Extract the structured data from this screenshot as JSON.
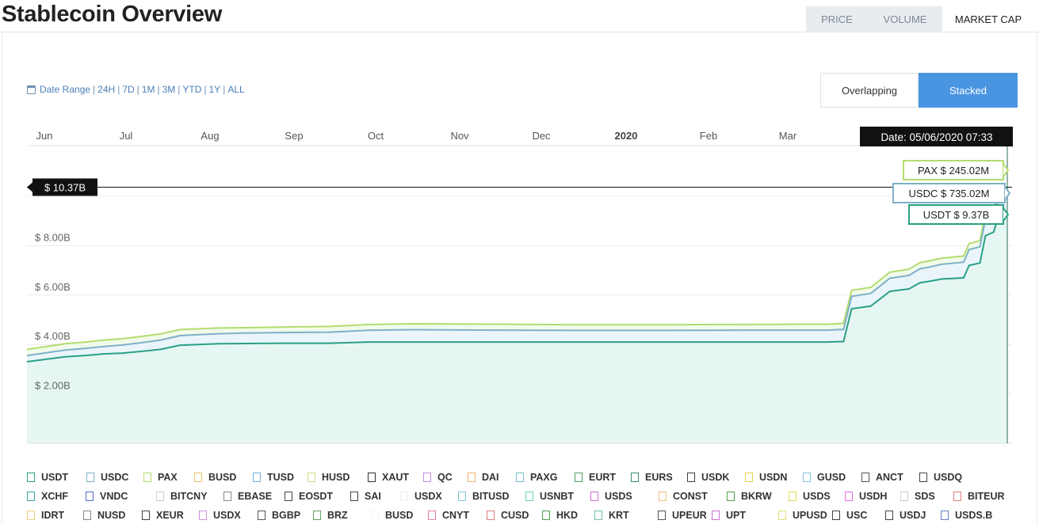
{
  "header": {
    "title": "Stablecoin Overview"
  },
  "tabs": [
    {
      "label": "PRICE",
      "active": false
    },
    {
      "label": "VOLUME",
      "active": false
    },
    {
      "label": "MARKET CAP",
      "active": true
    }
  ],
  "date_range": {
    "label": "Date Range",
    "options": [
      "24H",
      "7D",
      "1M",
      "3M",
      "YTD",
      "1Y",
      "ALL"
    ]
  },
  "view_modes": [
    {
      "label": "Overlapping",
      "active": false
    },
    {
      "label": "Stacked",
      "active": true
    }
  ],
  "colors": {
    "usdt": "#2aa085",
    "usdc": "#7fb0c9",
    "pax": "#b3dc6e",
    "fill": "#e6f7f3",
    "link": "#4a7fb5",
    "accent": "#4a95e2"
  },
  "chart_data": {
    "type": "area",
    "stacked": true,
    "x_ticks": [
      "Jun",
      "Jul",
      "Aug",
      "Sep",
      "Oct",
      "Nov",
      "Dec",
      "2020",
      "Feb",
      "Mar"
    ],
    "y_ticks": [
      "$ 2.00B",
      "$ 4.00B",
      "$ 6.00B",
      "$ 8.00B"
    ],
    "ylim": [
      0,
      10.5
    ],
    "cursor": {
      "date_label": "Date: 05/06/2020 07:33",
      "value_label": "$ 10.37B",
      "value": 10.37
    },
    "series": [
      {
        "name": "USDT",
        "color": "#2aa085",
        "tooltip": "USDT $ 9.37B",
        "points": [
          [
            "2019-05-13",
            3.3
          ],
          [
            "2019-05-20",
            3.4
          ],
          [
            "2019-05-27",
            3.5
          ],
          [
            "2019-06-03",
            3.55
          ],
          [
            "2019-06-10",
            3.62
          ],
          [
            "2019-06-17",
            3.65
          ],
          [
            "2019-06-24",
            3.72
          ],
          [
            "2019-07-01",
            3.8
          ],
          [
            "2019-07-08",
            3.97
          ],
          [
            "2019-07-15",
            4.0
          ],
          [
            "2019-07-22",
            4.03
          ],
          [
            "2019-08-01",
            4.04
          ],
          [
            "2019-08-15",
            4.05
          ],
          [
            "2019-09-01",
            4.05
          ],
          [
            "2019-09-15",
            4.1
          ],
          [
            "2019-10-01",
            4.1
          ],
          [
            "2019-11-01",
            4.1
          ],
          [
            "2019-12-01",
            4.1
          ],
          [
            "2020-01-01",
            4.1
          ],
          [
            "2020-02-01",
            4.1
          ],
          [
            "2020-03-01",
            4.1
          ],
          [
            "2020-03-07",
            4.12
          ],
          [
            "2020-03-10",
            5.45
          ],
          [
            "2020-03-17",
            5.55
          ],
          [
            "2020-03-24",
            6.15
          ],
          [
            "2020-03-31",
            6.25
          ],
          [
            "2020-04-04",
            6.5
          ],
          [
            "2020-04-07",
            6.55
          ],
          [
            "2020-04-12",
            6.65
          ],
          [
            "2020-04-20",
            6.7
          ],
          [
            "2020-04-22",
            7.2
          ],
          [
            "2020-04-26",
            7.3
          ],
          [
            "2020-04-28",
            8.4
          ],
          [
            "2020-05-01",
            8.55
          ],
          [
            "2020-05-03",
            9.3
          ],
          [
            "2020-05-06",
            9.37
          ]
        ]
      },
      {
        "name": "USDC",
        "color": "#7fb0c9",
        "tooltip": "USDC $ 735.02M",
        "points": [
          [
            "2019-05-13",
            0.25
          ],
          [
            "2019-06-10",
            0.3
          ],
          [
            "2019-07-01",
            0.38
          ],
          [
            "2019-08-01",
            0.42
          ],
          [
            "2019-09-01",
            0.45
          ],
          [
            "2019-10-01",
            0.5
          ],
          [
            "2019-11-01",
            0.48
          ],
          [
            "2019-12-01",
            0.47
          ],
          [
            "2020-01-01",
            0.47
          ],
          [
            "2020-02-01",
            0.48
          ],
          [
            "2020-03-01",
            0.48
          ],
          [
            "2020-03-10",
            0.5
          ],
          [
            "2020-04-01",
            0.55
          ],
          [
            "2020-05-01",
            0.68
          ],
          [
            "2020-05-06",
            0.735
          ]
        ]
      },
      {
        "name": "PAX",
        "color": "#b3dc6e",
        "tooltip": "PAX $ 245.02M",
        "points": [
          [
            "2019-05-13",
            0.25
          ],
          [
            "2019-06-10",
            0.26
          ],
          [
            "2019-07-01",
            0.25
          ],
          [
            "2019-08-01",
            0.22
          ],
          [
            "2019-09-01",
            0.23
          ],
          [
            "2019-10-01",
            0.24
          ],
          [
            "2019-11-01",
            0.24
          ],
          [
            "2019-12-01",
            0.23
          ],
          [
            "2020-01-01",
            0.23
          ],
          [
            "2020-02-01",
            0.23
          ],
          [
            "2020-03-01",
            0.24
          ],
          [
            "2020-04-01",
            0.25
          ],
          [
            "2020-05-06",
            0.245
          ]
        ]
      }
    ]
  },
  "legend": [
    {
      "label": "USDT",
      "color": "#2aa085"
    },
    {
      "label": "USDC",
      "color": "#7fb0c9"
    },
    {
      "label": "PAX",
      "color": "#b3dc6e"
    },
    {
      "label": "BUSD",
      "color": "#e8c36a"
    },
    {
      "label": "TUSD",
      "color": "#6fb0e0"
    },
    {
      "label": "HUSD",
      "color": "#c7e08a"
    },
    {
      "label": "XAUT",
      "color": "#333333"
    },
    {
      "label": "QC",
      "color": "#c58ee0"
    },
    {
      "label": "DAI",
      "color": "#f0b070"
    },
    {
      "label": "PAXG",
      "color": "#70c0c8"
    },
    {
      "label": "EURT",
      "color": "#50a060"
    },
    {
      "label": "EURS",
      "color": "#3a8a6a"
    },
    {
      "label": "USDK",
      "color": "#444444"
    },
    {
      "label": "USDN",
      "color": "#e8d050"
    },
    {
      "label": "GUSD",
      "color": "#80c0e0"
    },
    {
      "label": "ANCT",
      "color": "#555555"
    },
    {
      "label": "USDQ",
      "color": "#444444"
    },
    {
      "label": "XCHF",
      "color": "#40a0a0"
    },
    {
      "label": "VNDC",
      "color": "#5070c0"
    },
    {
      "label": "BITCNY",
      "color": "#d0d0d0"
    },
    {
      "label": "EBASE",
      "color": "#888888"
    },
    {
      "label": "EOSDT",
      "color": "#444444"
    },
    {
      "label": "SAI",
      "color": "#444444"
    },
    {
      "label": "USDX",
      "color": "#f0f0f0"
    },
    {
      "label": "BITUSD",
      "color": "#80c8e0"
    },
    {
      "label": "USNBT",
      "color": "#70d0b0"
    },
    {
      "label": "USDS",
      "color": "#d070d0"
    },
    {
      "label": "CONST",
      "color": "#f0c080"
    },
    {
      "label": "BKRW",
      "color": "#50a050"
    },
    {
      "label": "USDS",
      "color": "#e0e050"
    },
    {
      "label": "USDH",
      "color": "#e070e0"
    },
    {
      "label": "SDS",
      "color": "#d0d0d0"
    },
    {
      "label": "BITEUR",
      "color": "#e08080"
    },
    {
      "label": "IDRT",
      "color": "#f0d080"
    },
    {
      "label": "NUSD",
      "color": "#888888"
    },
    {
      "label": "XEUR",
      "color": "#444444"
    },
    {
      "label": "USDX",
      "color": "#d090e0"
    },
    {
      "label": "BGBP",
      "color": "#555555"
    },
    {
      "label": "BRZ",
      "color": "#60a060"
    },
    {
      "label": "BUSD",
      "color": "#f4f4f4"
    },
    {
      "label": "CNYT",
      "color": "#e080a0"
    },
    {
      "label": "CUSD",
      "color": "#e08080"
    },
    {
      "label": "HKD",
      "color": "#50a050"
    },
    {
      "label": "KRT",
      "color": "#70c0b0"
    },
    {
      "label": "UPEUR",
      "color": "#555555"
    },
    {
      "label": "UPT",
      "color": "#d070d0"
    },
    {
      "label": "UPUSD",
      "color": "#e0e070"
    },
    {
      "label": "USC",
      "color": "#444444"
    },
    {
      "label": "USDJ",
      "color": "#444444"
    },
    {
      "label": "USDS.B",
      "color": "#6080c0"
    }
  ]
}
